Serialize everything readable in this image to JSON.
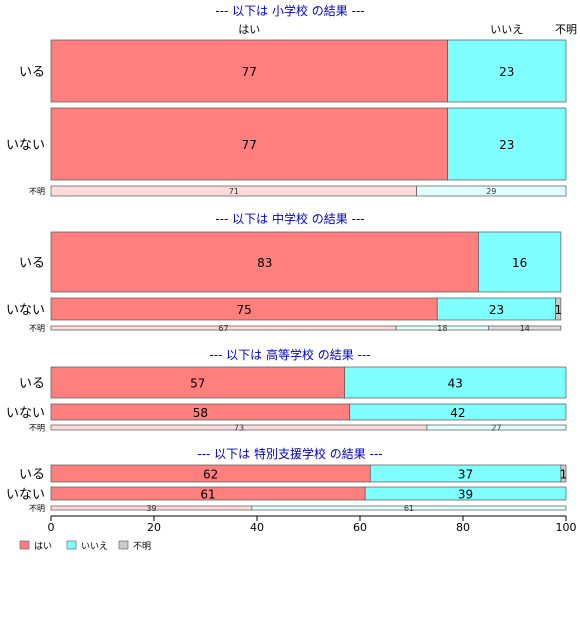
{
  "chart_data": {
    "type": "bar",
    "orientation": "horizontal",
    "stacked": true,
    "xlim": [
      0,
      100
    ],
    "xticks": [
      0,
      20,
      40,
      60,
      80,
      100
    ],
    "column_headers": [
      "はい",
      "いいえ",
      "不明"
    ],
    "legend": {
      "placement": "bottom-left",
      "items": [
        {
          "label": "はい",
          "color": "#ff7f7f"
        },
        {
          "label": "いいえ",
          "color": "#7fffff"
        },
        {
          "label": "不明",
          "color": "#cccccc"
        }
      ]
    },
    "colors": {
      "yes": "#ff7f7f",
      "no": "#7fffff",
      "unknown": "#cccccc",
      "yes_light": "#ffdada",
      "no_light": "#e0ffff",
      "unknown_light": "#dddddd",
      "title": "#0000cc"
    },
    "panels": [
      {
        "title": "--- 以下は 小学校 の結果 ---",
        "rows": [
          {
            "label": "いる",
            "values": [
              77,
              23,
              0
            ]
          },
          {
            "label": "いない",
            "values": [
              77,
              23,
              0
            ]
          },
          {
            "label": "不明",
            "values": [
              71,
              29,
              0
            ],
            "small": true
          }
        ]
      },
      {
        "title": "--- 以下は 中学校 の結果 ---",
        "rows": [
          {
            "label": "いる",
            "values": [
              83,
              16,
              0
            ]
          },
          {
            "label": "いない",
            "values": [
              75,
              23,
              1
            ]
          },
          {
            "label": "不明",
            "values": [
              67,
              18,
              14
            ],
            "small": true
          }
        ]
      },
      {
        "title": "--- 以下は 高等学校 の結果 ---",
        "rows": [
          {
            "label": "いる",
            "values": [
              57,
              43,
              0
            ]
          },
          {
            "label": "いない",
            "values": [
              58,
              42,
              0
            ]
          },
          {
            "label": "不明",
            "values": [
              73,
              27,
              0
            ],
            "small": true
          }
        ]
      },
      {
        "title": "--- 以下は 特別支援学校 の結果 ---",
        "rows": [
          {
            "label": "いる",
            "values": [
              62,
              37,
              1
            ]
          },
          {
            "label": "いない",
            "values": [
              61,
              39,
              0
            ]
          },
          {
            "label": "不明",
            "values": [
              39,
              61,
              0
            ],
            "small": true
          }
        ]
      }
    ]
  }
}
